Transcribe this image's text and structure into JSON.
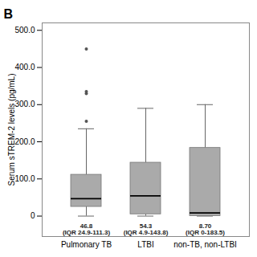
{
  "chart_data": {
    "type": "box",
    "title": "B",
    "ylabel": "Serum sTREM-2 levels (pg/mL)",
    "categories": [
      "Pulmonary TB",
      "LTBI",
      "non-TB, non-LTBI"
    ],
    "medians": [
      46.8,
      54.3,
      8.7
    ],
    "q1": [
      24.9,
      4.9,
      0
    ],
    "q3": [
      111.3,
      143.8,
      183.5
    ],
    "whisker_low": [
      0,
      0,
      0
    ],
    "whisker_high": [
      235,
      290,
      300
    ],
    "outliers": [
      [
        330,
        335,
        255,
        450
      ],
      [],
      []
    ],
    "annotations": [
      "46.8\n(IQR 24.9-111.3)",
      "54.3\n(IQR 4.9-143.8)",
      "8.70\n(IQR 0-183.5)"
    ],
    "ylim": [
      -55,
      520
    ],
    "yticks": [
      0,
      {
        "value": 100,
        "label": "100.0"
      },
      {
        "value": 200,
        "label": "200.0"
      },
      {
        "value": 300,
        "label": "300.0"
      },
      {
        "value": 400,
        "label": "400.0"
      },
      {
        "value": 500,
        "label": "500.0"
      }
    ],
    "color": "#aaaaaa",
    "grid": false
  }
}
